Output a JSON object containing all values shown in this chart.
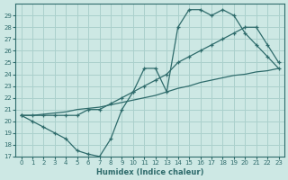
{
  "xlabel": "Humidex (Indice chaleur)",
  "ylabel": "",
  "bg_color": "#cde8e4",
  "grid_color": "#aad0cc",
  "line_color": "#2e6b6b",
  "xlim": [
    -0.5,
    23.5
  ],
  "ylim": [
    17,
    30
  ],
  "yticks": [
    17,
    18,
    19,
    20,
    21,
    22,
    23,
    24,
    25,
    26,
    27,
    28,
    29
  ],
  "xticks": [
    0,
    1,
    2,
    3,
    4,
    5,
    6,
    7,
    8,
    9,
    10,
    11,
    12,
    13,
    14,
    15,
    16,
    17,
    18,
    19,
    20,
    21,
    22,
    23
  ],
  "line1_x": [
    0,
    1,
    2,
    3,
    4,
    5,
    6,
    7,
    8,
    9,
    10,
    11,
    12,
    13,
    14,
    15,
    16,
    17,
    18,
    19,
    20,
    21,
    22,
    23
  ],
  "line1_y": [
    20.5,
    20.0,
    19.5,
    19.0,
    18.5,
    17.5,
    17.2,
    17.0,
    18.5,
    21.0,
    22.5,
    24.5,
    24.5,
    22.5,
    28.0,
    29.5,
    29.5,
    29.0,
    29.5,
    29.0,
    27.5,
    26.5,
    25.5,
    24.5
  ],
  "line2_x": [
    0,
    1,
    2,
    3,
    4,
    5,
    6,
    7,
    8,
    9,
    10,
    11,
    12,
    13,
    14,
    15,
    16,
    17,
    18,
    19,
    20,
    21,
    22,
    23
  ],
  "line2_y": [
    20.5,
    20.5,
    20.5,
    20.5,
    20.5,
    20.5,
    21.0,
    21.0,
    21.5,
    22.0,
    22.5,
    23.0,
    23.5,
    24.0,
    25.0,
    25.5,
    26.0,
    26.5,
    27.0,
    27.5,
    28.0,
    28.0,
    26.5,
    25.0
  ],
  "line3_x": [
    0,
    1,
    2,
    3,
    4,
    5,
    6,
    7,
    8,
    9,
    10,
    11,
    12,
    13,
    14,
    15,
    16,
    17,
    18,
    19,
    20,
    21,
    22,
    23
  ],
  "line3_y": [
    20.5,
    20.5,
    20.6,
    20.7,
    20.8,
    21.0,
    21.1,
    21.2,
    21.4,
    21.6,
    21.8,
    22.0,
    22.2,
    22.5,
    22.8,
    23.0,
    23.3,
    23.5,
    23.7,
    23.9,
    24.0,
    24.2,
    24.3,
    24.5
  ]
}
